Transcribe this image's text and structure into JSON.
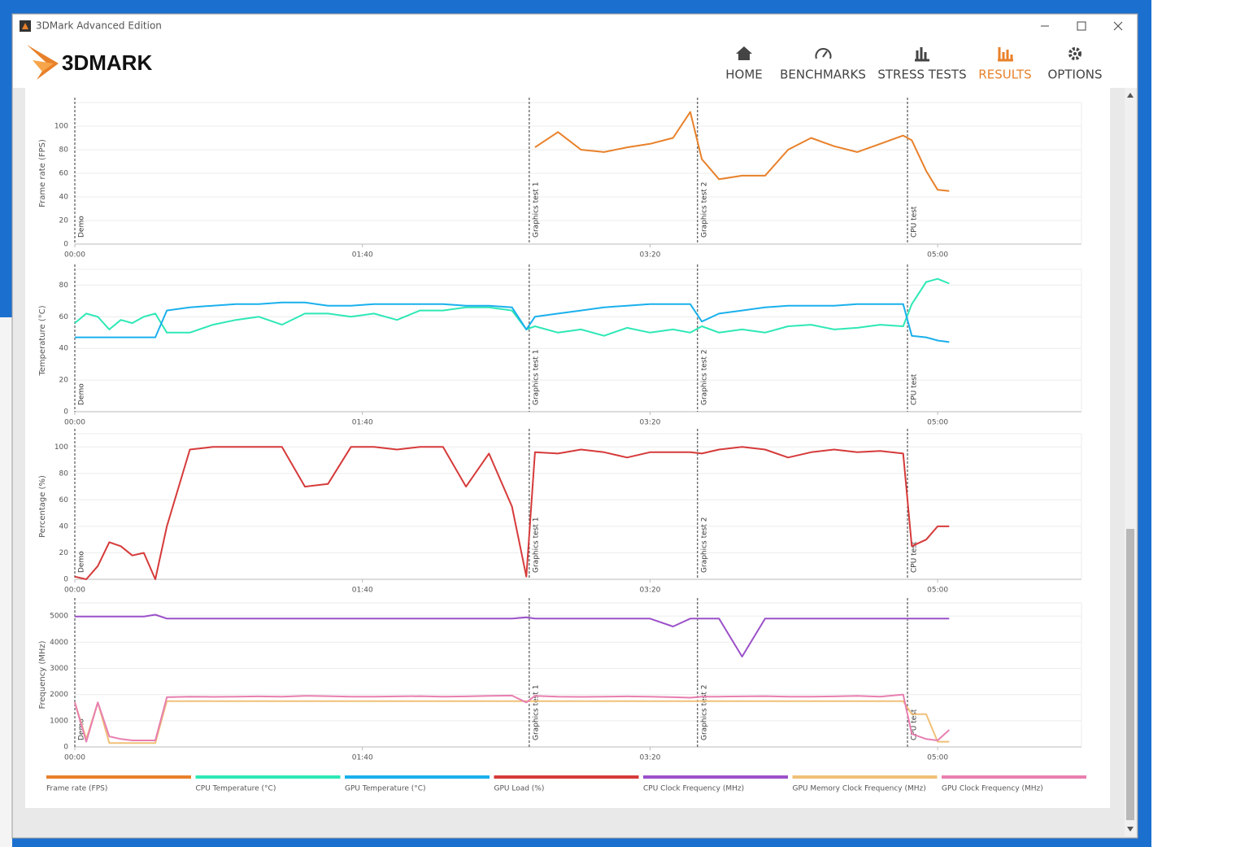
{
  "window": {
    "title": "3DMark Advanced Edition"
  },
  "logo": "3DMARK",
  "nav": [
    {
      "label": "HOME",
      "active": false
    },
    {
      "label": "BENCHMARKS",
      "active": false
    },
    {
      "label": "STRESS TESTS",
      "active": false
    },
    {
      "label": "RESULTS",
      "active": true
    },
    {
      "label": "OPTIONS",
      "active": false
    }
  ],
  "chart_data": [
    {
      "type": "line",
      "ylabel": "Frame rate (FPS)",
      "x": [
        0,
        4,
        8,
        12,
        16,
        20,
        24,
        28,
        32,
        40,
        48,
        56,
        64,
        72,
        80,
        88,
        96,
        104,
        112,
        120,
        128,
        136,
        144,
        152,
        157,
        160,
        168,
        176,
        184,
        192,
        200,
        208,
        214,
        218,
        224,
        232,
        240,
        248,
        256,
        264,
        272,
        280,
        288,
        291,
        296,
        300,
        304
      ],
      "xlim": [
        0,
        350
      ],
      "xticks": [
        {
          "value": 0,
          "label": "00:00"
        },
        {
          "value": 100,
          "label": "01:40"
        },
        {
          "value": 200,
          "label": "03:20"
        },
        {
          "value": 300,
          "label": "05:00"
        }
      ],
      "ylim": [
        0,
        120
      ],
      "yticks": [
        0,
        20,
        40,
        60,
        80,
        100
      ],
      "grid": true,
      "annotations": [
        {
          "x": 0,
          "label": "Demo"
        },
        {
          "x": 158,
          "label": "Graphics test 1"
        },
        {
          "x": 216.5,
          "label": "Graphics test 2"
        },
        {
          "x": 289.5,
          "label": "CPU test"
        }
      ],
      "series": [
        {
          "name": "Frame rate (FPS)",
          "color": "#e8812a",
          "values": [
            null,
            null,
            null,
            null,
            null,
            null,
            null,
            null,
            null,
            null,
            null,
            null,
            null,
            null,
            null,
            null,
            null,
            null,
            null,
            null,
            null,
            null,
            null,
            null,
            null,
            82,
            95,
            80,
            78,
            82,
            85,
            90,
            112,
            72,
            55,
            58,
            58,
            80,
            90,
            83,
            78,
            85,
            92,
            88,
            62,
            46,
            45
          ]
        }
      ]
    },
    {
      "type": "line",
      "ylabel": "Temperature (°C)",
      "x": [
        0,
        4,
        8,
        12,
        16,
        20,
        24,
        28,
        32,
        40,
        48,
        56,
        64,
        72,
        80,
        88,
        96,
        104,
        112,
        120,
        128,
        136,
        144,
        152,
        157,
        160,
        168,
        176,
        184,
        192,
        200,
        208,
        214,
        218,
        224,
        232,
        240,
        248,
        256,
        264,
        272,
        280,
        288,
        291,
        296,
        300,
        304
      ],
      "xlim": [
        0,
        350
      ],
      "xticks": [
        {
          "value": 0,
          "label": "00:00"
        },
        {
          "value": 100,
          "label": "01:40"
        },
        {
          "value": 200,
          "label": "03:20"
        },
        {
          "value": 300,
          "label": "05:00"
        }
      ],
      "ylim": [
        0,
        90
      ],
      "yticks": [
        0,
        20,
        40,
        60,
        80
      ],
      "grid": true,
      "annotations": [
        {
          "x": 0,
          "label": "Demo"
        },
        {
          "x": 158,
          "label": "Graphics test 1"
        },
        {
          "x": 216.5,
          "label": "Graphics test 2"
        },
        {
          "x": 289.5,
          "label": "CPU test"
        }
      ],
      "series": [
        {
          "name": "CPU Temperature (°C)",
          "color": "#2ee8b6",
          "values": [
            56,
            62,
            60,
            52,
            58,
            56,
            60,
            62,
            50,
            50,
            55,
            58,
            60,
            55,
            62,
            62,
            60,
            62,
            58,
            64,
            64,
            66,
            66,
            64,
            52,
            54,
            50,
            52,
            48,
            53,
            50,
            52,
            50,
            54,
            50,
            52,
            50,
            54,
            55,
            52,
            53,
            55,
            54,
            68,
            82,
            84,
            81
          ]
        },
        {
          "name": "GPU Temperature (°C)",
          "color": "#1ab0ec",
          "values": [
            47,
            47,
            47,
            47,
            47,
            47,
            47,
            47,
            64,
            66,
            67,
            68,
            68,
            69,
            69,
            67,
            67,
            68,
            68,
            68,
            68,
            67,
            67,
            66,
            52,
            60,
            62,
            64,
            66,
            67,
            68,
            68,
            68,
            57,
            62,
            64,
            66,
            67,
            67,
            67,
            68,
            68,
            68,
            48,
            47,
            45,
            44
          ]
        }
      ]
    },
    {
      "type": "line",
      "ylabel": "Percentage (%)",
      "x": [
        0,
        4,
        8,
        12,
        16,
        20,
        24,
        28,
        32,
        40,
        48,
        56,
        64,
        72,
        80,
        88,
        96,
        104,
        112,
        120,
        128,
        136,
        144,
        152,
        157,
        160,
        168,
        176,
        184,
        192,
        200,
        208,
        214,
        218,
        224,
        232,
        240,
        248,
        256,
        264,
        272,
        280,
        288,
        291,
        296,
        300,
        304
      ],
      "xlim": [
        0,
        350
      ],
      "xticks": [
        {
          "value": 0,
          "label": "00:00"
        },
        {
          "value": 100,
          "label": "01:40"
        },
        {
          "value": 200,
          "label": "03:20"
        },
        {
          "value": 300,
          "label": "05:00"
        }
      ],
      "ylim": [
        0,
        110
      ],
      "yticks": [
        0,
        20,
        40,
        60,
        80,
        100
      ],
      "grid": true,
      "annotations": [
        {
          "x": 0,
          "label": "Demo"
        },
        {
          "x": 158,
          "label": "Graphics test 1"
        },
        {
          "x": 216.5,
          "label": "Graphics test 2"
        },
        {
          "x": 289.5,
          "label": "CPU test"
        }
      ],
      "series": [
        {
          "name": "GPU Load (%)",
          "color": "#d63a3a",
          "values": [
            2,
            0,
            10,
            28,
            25,
            18,
            20,
            0,
            40,
            98,
            100,
            100,
            100,
            100,
            70,
            72,
            100,
            100,
            98,
            100,
            100,
            70,
            95,
            55,
            2,
            96,
            95,
            98,
            96,
            92,
            96,
            96,
            96,
            95,
            98,
            100,
            98,
            92,
            96,
            98,
            96,
            97,
            95,
            25,
            30,
            40,
            40
          ]
        }
      ]
    },
    {
      "type": "line",
      "ylabel": "Frequency (MHz)",
      "x": [
        0,
        4,
        8,
        12,
        16,
        20,
        24,
        28,
        32,
        40,
        48,
        56,
        64,
        72,
        80,
        88,
        96,
        104,
        112,
        120,
        128,
        136,
        144,
        152,
        157,
        160,
        168,
        176,
        184,
        192,
        200,
        208,
        214,
        218,
        224,
        232,
        240,
        248,
        256,
        264,
        272,
        280,
        288,
        291,
        296,
        300,
        304
      ],
      "xlim": [
        0,
        350
      ],
      "xticks": [
        {
          "value": 0,
          "label": "00:00"
        },
        {
          "value": 100,
          "label": "01:40"
        },
        {
          "value": 200,
          "label": "03:20"
        },
        {
          "value": 300,
          "label": "05:00"
        }
      ],
      "ylim": [
        0,
        5500
      ],
      "yticks": [
        0,
        1000,
        2000,
        3000,
        4000,
        5000
      ],
      "grid": true,
      "annotations": [
        {
          "x": 0,
          "label": "Demo"
        },
        {
          "x": 158,
          "label": "Graphics test 1"
        },
        {
          "x": 216.5,
          "label": "Graphics test 2"
        },
        {
          "x": 289.5,
          "label": "CPU test"
        }
      ],
      "series": [
        {
          "name": "CPU Clock Frequency (MHz)",
          "color": "#9b51c9",
          "values": [
            4980,
            4980,
            4980,
            4980,
            4980,
            4980,
            4980,
            5050,
            4900,
            4900,
            4900,
            4900,
            4900,
            4900,
            4900,
            4900,
            4900,
            4900,
            4900,
            4900,
            4900,
            4900,
            4900,
            4900,
            4950,
            4900,
            4900,
            4900,
            4900,
            4900,
            4900,
            4600,
            4900,
            4900,
            4900,
            3450,
            4900,
            4900,
            4900,
            4900,
            4900,
            4900,
            4900,
            4900,
            4900,
            4900,
            4900
          ]
        },
        {
          "name": "GPU Memory Clock Frequency (MHz)",
          "color": "#f0c078",
          "values": [
            1700,
            300,
            1700,
            150,
            150,
            150,
            150,
            150,
            1750,
            1750,
            1750,
            1750,
            1750,
            1750,
            1750,
            1750,
            1750,
            1750,
            1750,
            1750,
            1750,
            1750,
            1750,
            1750,
            1750,
            1750,
            1750,
            1750,
            1750,
            1750,
            1750,
            1750,
            1750,
            1750,
            1750,
            1750,
            1750,
            1750,
            1750,
            1750,
            1750,
            1750,
            1750,
            1250,
            1250,
            200,
            200
          ]
        },
        {
          "name": "GPU Clock Frequency (MHz)",
          "color": "#e87fb0",
          "values": [
            1700,
            200,
            1700,
            400,
            300,
            250,
            250,
            250,
            1900,
            1920,
            1910,
            1920,
            1930,
            1920,
            1950,
            1940,
            1920,
            1920,
            1930,
            1940,
            1920,
            1930,
            1950,
            1960,
            1700,
            1950,
            1920,
            1910,
            1920,
            1930,
            1920,
            1900,
            1880,
            1920,
            1920,
            1930,
            1940,
            1920,
            1920,
            1930,
            1950,
            1920,
            2000,
            500,
            300,
            250,
            650
          ]
        }
      ]
    }
  ]
}
